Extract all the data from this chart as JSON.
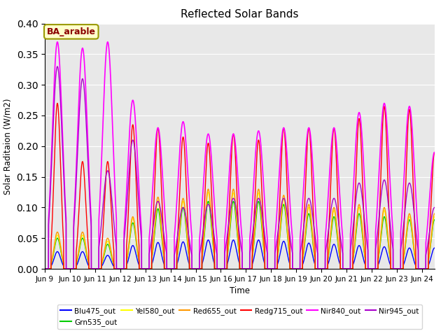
{
  "title": "Reflected Solar Bands",
  "xlabel": "Time",
  "ylabel": "Solar Raditaion (W/m2)",
  "annotation": "BA_arable",
  "ylim": [
    0.0,
    0.4
  ],
  "yticks": [
    0.0,
    0.05,
    0.1,
    0.15,
    0.2,
    0.25,
    0.3,
    0.35,
    0.4
  ],
  "xtick_labels": [
    "Jun 9",
    "Jun 10",
    "Jun 11",
    "Jun 12",
    "Jun 13",
    "Jun 14",
    "Jun 15",
    "Jun 16",
    "Jun 17",
    "Jun 18",
    "Jun 19",
    "Jun 20",
    "Jun 21",
    "Jun 22",
    "Jun 23",
    "Jun 24"
  ],
  "series": {
    "Blu475_out": {
      "color": "#0000ff",
      "lw": 1.0
    },
    "Grn535_out": {
      "color": "#00cc00",
      "lw": 1.0
    },
    "Yel580_out": {
      "color": "#ffff00",
      "lw": 1.0
    },
    "Red655_out": {
      "color": "#ff9900",
      "lw": 1.0
    },
    "Redg715_out": {
      "color": "#ff0000",
      "lw": 1.0
    },
    "Nir840_out": {
      "color": "#ff00ff",
      "lw": 1.2
    },
    "Nir945_out": {
      "color": "#aa00cc",
      "lw": 1.0
    }
  },
  "bg_color": "#e8e8e8",
  "fig_bg": "#ffffff",
  "nir840_peaks": [
    0.37,
    0.36,
    0.37,
    0.275,
    0.23,
    0.24,
    0.22,
    0.22,
    0.225,
    0.23,
    0.23,
    0.23,
    0.255,
    0.27,
    0.265,
    0.19
  ],
  "nir945_peaks": [
    0.33,
    0.31,
    0.16,
    0.21,
    0.11,
    0.1,
    0.105,
    0.115,
    0.115,
    0.115,
    0.115,
    0.115,
    0.14,
    0.145,
    0.14,
    0.1
  ],
  "redg715_peaks": [
    0.27,
    0.175,
    0.175,
    0.235,
    0.23,
    0.215,
    0.205,
    0.22,
    0.21,
    0.23,
    0.23,
    0.23,
    0.245,
    0.265,
    0.26,
    0.19
  ],
  "red655_peaks": [
    0.06,
    0.06,
    0.05,
    0.085,
    0.117,
    0.115,
    0.13,
    0.13,
    0.13,
    0.12,
    0.105,
    0.1,
    0.105,
    0.1,
    0.09,
    0.09
  ],
  "yel580_peaks": [
    0.055,
    0.055,
    0.045,
    0.082,
    0.111,
    0.11,
    0.125,
    0.124,
    0.124,
    0.114,
    0.1,
    0.095,
    0.1,
    0.095,
    0.085,
    0.085
  ],
  "grn535_peaks": [
    0.05,
    0.05,
    0.04,
    0.075,
    0.098,
    0.1,
    0.11,
    0.11,
    0.11,
    0.105,
    0.09,
    0.085,
    0.09,
    0.085,
    0.08,
    0.08
  ],
  "blu475_peaks": [
    0.028,
    0.028,
    0.022,
    0.038,
    0.043,
    0.044,
    0.047,
    0.047,
    0.047,
    0.045,
    0.042,
    0.04,
    0.038,
    0.036,
    0.034,
    0.034
  ]
}
